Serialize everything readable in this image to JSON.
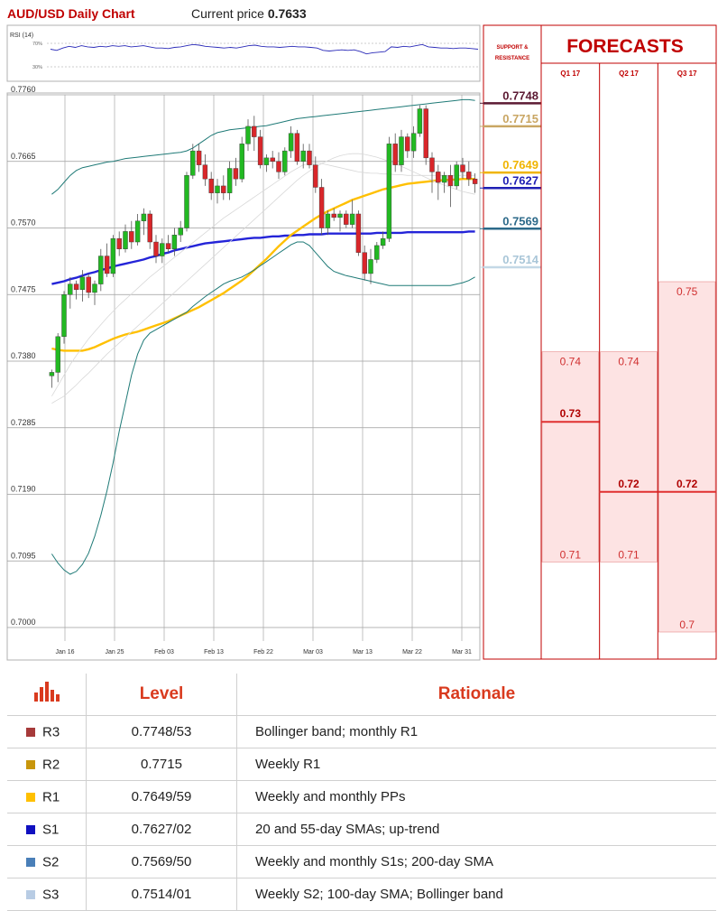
{
  "header": {
    "title": "AUD/USD Daily Chart",
    "price_label": "Current price",
    "price_value": "0.7633"
  },
  "rsi": {
    "label": "RSI (14)",
    "upper": "70%",
    "lower": "30%"
  },
  "chart_data": {
    "type": "candlestick",
    "ylim": [
      0.7,
      0.776
    ],
    "y_ticks": [
      "0.7760",
      "0.7665",
      "0.7570",
      "0.7475",
      "0.7380",
      "0.7285",
      "0.7190",
      "0.7095",
      "0.7000"
    ],
    "x_ticks": [
      "Jan 16",
      "Jan 25",
      "Feb 03",
      "Feb 13",
      "Feb 22",
      "Mar 03",
      "Mar 13",
      "Mar 22",
      "Mar 31"
    ],
    "candles": [
      [
        0.7359,
        0.7368,
        0.7342,
        0.7364
      ],
      [
        0.7364,
        0.742,
        0.735,
        0.7415
      ],
      [
        0.7415,
        0.748,
        0.7405,
        0.7475
      ],
      [
        0.7475,
        0.75,
        0.7455,
        0.749
      ],
      [
        0.749,
        0.7495,
        0.7468,
        0.7482
      ],
      [
        0.7482,
        0.751,
        0.7465,
        0.75
      ],
      [
        0.75,
        0.7505,
        0.747,
        0.7478
      ],
      [
        0.7478,
        0.7495,
        0.746,
        0.749
      ],
      [
        0.749,
        0.754,
        0.748,
        0.753
      ],
      [
        0.753,
        0.7548,
        0.75,
        0.7505
      ],
      [
        0.7505,
        0.756,
        0.75,
        0.7555
      ],
      [
        0.7555,
        0.7565,
        0.753,
        0.754
      ],
      [
        0.754,
        0.7575,
        0.7535,
        0.7565
      ],
      [
        0.7565,
        0.758,
        0.754,
        0.755
      ],
      [
        0.755,
        0.759,
        0.7545,
        0.758
      ],
      [
        0.758,
        0.7598,
        0.756,
        0.759
      ],
      [
        0.759,
        0.7595,
        0.754,
        0.755
      ],
      [
        0.755,
        0.756,
        0.752,
        0.753
      ],
      [
        0.753,
        0.7555,
        0.752,
        0.7548
      ],
      [
        0.7548,
        0.756,
        0.7535,
        0.754
      ],
      [
        0.754,
        0.757,
        0.753,
        0.756
      ],
      [
        0.756,
        0.758,
        0.755,
        0.757
      ],
      [
        0.757,
        0.765,
        0.7565,
        0.7645
      ],
      [
        0.7645,
        0.769,
        0.764,
        0.768
      ],
      [
        0.768,
        0.769,
        0.765,
        0.766
      ],
      [
        0.766,
        0.7675,
        0.763,
        0.764
      ],
      [
        0.764,
        0.765,
        0.761,
        0.762
      ],
      [
        0.762,
        0.764,
        0.7605,
        0.763
      ],
      [
        0.763,
        0.7645,
        0.761,
        0.762
      ],
      [
        0.762,
        0.7665,
        0.761,
        0.7655
      ],
      [
        0.7655,
        0.767,
        0.763,
        0.764
      ],
      [
        0.764,
        0.77,
        0.7635,
        0.769
      ],
      [
        0.769,
        0.7725,
        0.768,
        0.7715
      ],
      [
        0.7715,
        0.773,
        0.768,
        0.77
      ],
      [
        0.77,
        0.771,
        0.7655,
        0.766
      ],
      [
        0.766,
        0.7675,
        0.765,
        0.767
      ],
      [
        0.767,
        0.768,
        0.7655,
        0.7665
      ],
      [
        0.7665,
        0.7678,
        0.764,
        0.765
      ],
      [
        0.765,
        0.7685,
        0.7645,
        0.768
      ],
      [
        0.768,
        0.7715,
        0.767,
        0.7705
      ],
      [
        0.7705,
        0.771,
        0.766,
        0.7665
      ],
      [
        0.7665,
        0.769,
        0.7655,
        0.768
      ],
      [
        0.768,
        0.769,
        0.7655,
        0.766
      ],
      [
        0.766,
        0.7672,
        0.762,
        0.7628
      ],
      [
        0.7628,
        0.764,
        0.756,
        0.757
      ],
      [
        0.757,
        0.7595,
        0.756,
        0.759
      ],
      [
        0.759,
        0.7598,
        0.758,
        0.7585
      ],
      [
        0.7585,
        0.7595,
        0.7565,
        0.759
      ],
      [
        0.759,
        0.7595,
        0.757,
        0.7575
      ],
      [
        0.7575,
        0.761,
        0.757,
        0.759
      ],
      [
        0.759,
        0.7595,
        0.753,
        0.7535
      ],
      [
        0.7535,
        0.7545,
        0.7495,
        0.7505
      ],
      [
        0.7505,
        0.754,
        0.749,
        0.7525
      ],
      [
        0.7525,
        0.755,
        0.752,
        0.7545
      ],
      [
        0.7545,
        0.7565,
        0.754,
        0.7555
      ],
      [
        0.7555,
        0.77,
        0.755,
        0.769
      ],
      [
        0.769,
        0.7705,
        0.765,
        0.766
      ],
      [
        0.766,
        0.771,
        0.765,
        0.77
      ],
      [
        0.77,
        0.7705,
        0.767,
        0.768
      ],
      [
        0.768,
        0.7715,
        0.767,
        0.7705
      ],
      [
        0.7705,
        0.7745,
        0.77,
        0.774
      ],
      [
        0.774,
        0.7745,
        0.766,
        0.767
      ],
      [
        0.767,
        0.7678,
        0.762,
        0.765
      ],
      [
        0.765,
        0.766,
        0.761,
        0.7635
      ],
      [
        0.7635,
        0.765,
        0.762,
        0.7645
      ],
      [
        0.7645,
        0.766,
        0.76,
        0.763
      ],
      [
        0.763,
        0.7665,
        0.7625,
        0.766
      ],
      [
        0.766,
        0.767,
        0.764,
        0.765
      ],
      [
        0.765,
        0.7665,
        0.763,
        0.764
      ],
      [
        0.764,
        0.7648,
        0.762,
        0.7633
      ]
    ],
    "overlays": [
      {
        "values": [
          0.749,
          0.7492,
          0.7494,
          0.7497,
          0.7499,
          0.7502,
          0.7505,
          0.7507,
          0.751,
          0.7512,
          0.7515,
          0.7517,
          0.7519,
          0.7521,
          0.7523,
          0.7525,
          0.7528,
          0.753,
          0.7533,
          0.7535,
          0.7538,
          0.754,
          0.7542,
          0.7544,
          0.7546,
          0.7548,
          0.7549,
          0.755,
          0.7551,
          0.7552,
          0.7553,
          0.7554,
          0.7555,
          0.7556,
          0.7556,
          0.7557,
          0.7558,
          0.7558,
          0.7559,
          0.7559,
          0.756,
          0.756,
          0.7561,
          0.7561,
          0.7561,
          0.7562,
          0.7562,
          0.7562,
          0.7562,
          0.7562,
          0.7562,
          0.7562,
          0.7562,
          0.7563,
          0.7563,
          0.7563,
          0.7563,
          0.7563,
          0.7564,
          0.7564,
          0.7564,
          0.7564,
          0.7564,
          0.7564,
          0.7564,
          0.7564,
          0.7564,
          0.7564,
          0.7565,
          0.7565
        ]
      },
      {
        "values": [
          0.7398,
          0.7396,
          0.7395,
          0.7395,
          0.7395,
          0.7395,
          0.7397,
          0.74,
          0.7404,
          0.7408,
          0.7412,
          0.7415,
          0.7418,
          0.742,
          0.7422,
          0.7425,
          0.7428,
          0.7431,
          0.7434,
          0.7437,
          0.7441,
          0.7445,
          0.7449,
          0.7453,
          0.7457,
          0.7462,
          0.7467,
          0.7472,
          0.7477,
          0.7483,
          0.7489,
          0.7495,
          0.7502,
          0.751,
          0.7518,
          0.7526,
          0.7535,
          0.7544,
          0.7552,
          0.756,
          0.7566,
          0.7572,
          0.7578,
          0.7584,
          0.7589,
          0.7594,
          0.7598,
          0.7602,
          0.7606,
          0.761,
          0.7613,
          0.7616,
          0.7619,
          0.7622,
          0.7625,
          0.7627,
          0.7629,
          0.7631,
          0.7633,
          0.7634,
          0.7635,
          0.7636,
          0.7637,
          0.7638,
          0.7638,
          0.7639,
          0.7639,
          0.764,
          0.764,
          0.764
        ]
      },
      {
        "values": [
          0.732,
          0.7325,
          0.733,
          0.7338,
          0.7346,
          0.7355,
          0.7363,
          0.7372,
          0.7381,
          0.739,
          0.7398,
          0.7406,
          0.7414,
          0.7422,
          0.743,
          0.7438,
          0.7446,
          0.7454,
          0.7462,
          0.747,
          0.7478,
          0.7486,
          0.7494,
          0.7502,
          0.751,
          0.7518,
          0.7526,
          0.7534,
          0.7542,
          0.755,
          0.7558,
          0.7566,
          0.7574,
          0.7582,
          0.759,
          0.7598,
          0.7606,
          0.7614,
          0.7622,
          0.763,
          0.7638,
          0.7645,
          0.7651,
          0.7657,
          0.7662,
          0.7666,
          0.767,
          0.7673,
          0.7675,
          0.7676,
          0.7676,
          0.7675,
          0.7673,
          0.7671,
          0.7668,
          0.7665,
          0.7662,
          0.7658,
          0.7654,
          0.765,
          0.7646,
          0.7642,
          0.7638,
          0.7634,
          0.7631,
          0.7628,
          0.7625,
          0.7622,
          0.762,
          0.7618
        ]
      },
      {
        "values": [
          0.7105,
          0.7092,
          0.7082,
          0.7076,
          0.708,
          0.709,
          0.7106,
          0.713,
          0.716,
          0.7195,
          0.7235,
          0.728,
          0.732,
          0.736,
          0.739,
          0.741,
          0.742,
          0.7425,
          0.743,
          0.7435,
          0.744,
          0.7445,
          0.745,
          0.7458,
          0.7465,
          0.7472,
          0.7478,
          0.7484,
          0.749,
          0.7494,
          0.7497,
          0.75,
          0.7505,
          0.751,
          0.7516,
          0.7522,
          0.7528,
          0.7534,
          0.754,
          0.7546,
          0.755,
          0.755,
          0.7545,
          0.7535,
          0.7525,
          0.7515,
          0.7508,
          0.7505,
          0.7502,
          0.75,
          0.7498,
          0.7496,
          0.7494,
          0.7492,
          0.749,
          0.7488,
          0.7488,
          0.7488,
          0.7488,
          0.7488,
          0.7488,
          0.7488,
          0.7488,
          0.7488,
          0.7488,
          0.7488,
          0.749,
          0.7492,
          0.7495,
          0.75
        ]
      },
      {
        "values": [
          0.7618,
          0.7625,
          0.7635,
          0.7645,
          0.7652,
          0.7656,
          0.7658,
          0.766,
          0.7662,
          0.7664,
          0.7665,
          0.7667,
          0.7669,
          0.767,
          0.7671,
          0.7672,
          0.7673,
          0.7674,
          0.7675,
          0.7676,
          0.7677,
          0.7678,
          0.768,
          0.7684,
          0.769,
          0.7696,
          0.7702,
          0.7706,
          0.7708,
          0.771,
          0.7711,
          0.7712,
          0.7713,
          0.7714,
          0.7715,
          0.7716,
          0.7718,
          0.772,
          0.7722,
          0.7724,
          0.7726,
          0.7727,
          0.7728,
          0.7729,
          0.773,
          0.7731,
          0.7732,
          0.7733,
          0.7734,
          0.7735,
          0.7736,
          0.7737,
          0.7738,
          0.7739,
          0.774,
          0.7741,
          0.7742,
          0.7743,
          0.7744,
          0.7745,
          0.7746,
          0.7747,
          0.7748,
          0.7749,
          0.775,
          0.7751,
          0.7752,
          0.7753,
          0.7753,
          0.7752
        ]
      },
      {
        "values": [
          0.733,
          0.7345,
          0.736,
          0.7375,
          0.7388,
          0.74,
          0.7412,
          0.7422,
          0.7432,
          0.7442,
          0.7451,
          0.746,
          0.7468,
          0.7476,
          0.7484,
          0.7492,
          0.75,
          0.7507,
          0.7514,
          0.7521,
          0.7528,
          0.7535,
          0.7542,
          0.7549,
          0.7556,
          0.7563,
          0.757,
          0.7577,
          0.7584,
          0.759,
          0.7596,
          0.7602,
          0.7608,
          0.7614,
          0.762,
          0.7626,
          0.7632,
          0.7638,
          0.7644,
          0.765,
          0.7655,
          0.766,
          0.7662,
          0.7663,
          0.7662,
          0.766,
          0.7658,
          0.7656,
          0.7654,
          0.7652,
          0.765,
          0.7649,
          0.7648,
          0.7648,
          0.7647,
          0.7647,
          0.7646,
          0.7646,
          0.7645,
          0.7645,
          0.7645,
          0.7645,
          0.7645,
          0.7645,
          0.7645,
          0.7645,
          0.7645,
          0.7645,
          0.7645,
          0.7645
        ]
      }
    ],
    "rsi": [
      60,
      58,
      62,
      65,
      63,
      66,
      64,
      63,
      65,
      64,
      66,
      65,
      66,
      64,
      65,
      66,
      64,
      62,
      62,
      61,
      63,
      64,
      66,
      68,
      67,
      65,
      64,
      63,
      62,
      63,
      62,
      64,
      66,
      67,
      65,
      64,
      64,
      63,
      64,
      65,
      64,
      64,
      63,
      62,
      58,
      57,
      58,
      59,
      58,
      59,
      56,
      52,
      54,
      55,
      56,
      64,
      63,
      65,
      64,
      66,
      68,
      64,
      63,
      62,
      62,
      61,
      62,
      62,
      61,
      60
    ],
    "levels": [
      {
        "value": "0.7748",
        "price": 0.7748,
        "color": "#5c1a33",
        "text_color": "#5c1a33"
      },
      {
        "value": "0.7715",
        "price": 0.7715,
        "color": "#c9a663",
        "text_color": "#c9a663"
      },
      {
        "value": "0.7649",
        "price": 0.7649,
        "color": "#f0b400",
        "text_color": "#f0b400"
      },
      {
        "value": "0.7627",
        "price": 0.7627,
        "color": "#1f1fb4",
        "text_color": "#1f1fb4"
      },
      {
        "value": "0.7569",
        "price": 0.7569,
        "color": "#2d6a8a",
        "text_color": "#2d6a8a"
      },
      {
        "value": "0.7514",
        "price": 0.7514,
        "color": "#c4d8e6",
        "text_color": "#a9c6d8"
      }
    ],
    "support_resistance_label": [
      "SUPPORT &",
      "RESISTANCE"
    ],
    "forecast": {
      "title": "FORECASTS",
      "columns": [
        {
          "label": "Q1 17",
          "low": 0.71,
          "high": 0.74,
          "mid": 0.73,
          "low_text": "0.71",
          "high_text": "0.74",
          "mid_text": "0.73"
        },
        {
          "label": "Q2 17",
          "low": 0.71,
          "high": 0.74,
          "mid": 0.72,
          "low_text": "0.71",
          "high_text": "0.74",
          "mid_text": "0.72"
        },
        {
          "label": "Q3 17",
          "low": 0.7,
          "high": 0.75,
          "mid": 0.72,
          "low_text": "0.7",
          "high_text": "0.75",
          "mid_text": "0.72"
        }
      ]
    },
    "colors": {
      "up": "#22b922",
      "down": "#d9262a",
      "sma200": "#2424d8",
      "sma55": "#ffc000",
      "bollinger": "#1f7a77",
      "sma100": "#d8d8d8",
      "forecast_fill": "#fde3e3",
      "forecast_line": "#e03030"
    }
  },
  "table": {
    "header_level": "Level",
    "header_rationale": "Rationale",
    "rows": [
      {
        "name": "R3",
        "level": "0.7748/53",
        "rationale": "Bollinger band; monthly R1",
        "color": "#a63a3a"
      },
      {
        "name": "R2",
        "level": "0.7715",
        "rationale": "Weekly R1",
        "color": "#c8960c"
      },
      {
        "name": "R1",
        "level": "0.7649/59",
        "rationale": "Weekly and monthly PPs",
        "color": "#ffc000"
      },
      {
        "name": "S1",
        "level": "0.7627/02",
        "rationale": "20 and 55-day SMAs; up-trend",
        "color": "#1010c0"
      },
      {
        "name": "S2",
        "level": "0.7569/50",
        "rationale": "Weekly and monthly S1s; 200-day SMA",
        "color": "#4a7fb8"
      },
      {
        "name": "S3",
        "level": "0.7514/01",
        "rationale": "Weekly S2; 100-day SMA; Bollinger band",
        "color": "#b8cce4"
      }
    ]
  }
}
